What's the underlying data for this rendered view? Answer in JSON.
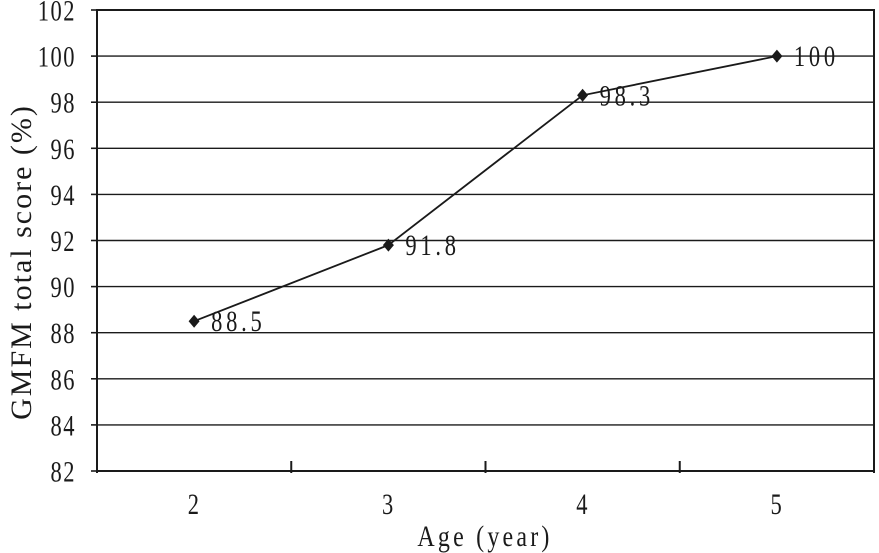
{
  "figure": {
    "background": "#ffffff",
    "foreground": "#1a1a1a"
  },
  "chart_data": {
    "type": "line",
    "xlabel": "Age (year)",
    "ylabel": "GMFM total score (%)",
    "categories": [
      "2",
      "3",
      "4",
      "5"
    ],
    "x_values": [
      2,
      3,
      4,
      5
    ],
    "series": [
      {
        "name": "GMFM total score",
        "values": [
          88.5,
          91.8,
          98.3,
          100
        ],
        "point_labels": [
          "88.5",
          "91.8",
          "98.3",
          "100"
        ],
        "marker": "diamond",
        "color": "#1a1a1a"
      }
    ],
    "y_ticks": [
      82,
      84,
      86,
      88,
      90,
      92,
      94,
      96,
      98,
      100,
      102
    ],
    "y_tick_labels": [
      "82",
      "84",
      "86",
      "88",
      "90",
      "92",
      "94",
      "96",
      "98",
      "100",
      "102"
    ],
    "ylim": [
      82,
      102
    ],
    "grid": "horizontal-major",
    "legend": "none",
    "axis_x_type": "category"
  }
}
